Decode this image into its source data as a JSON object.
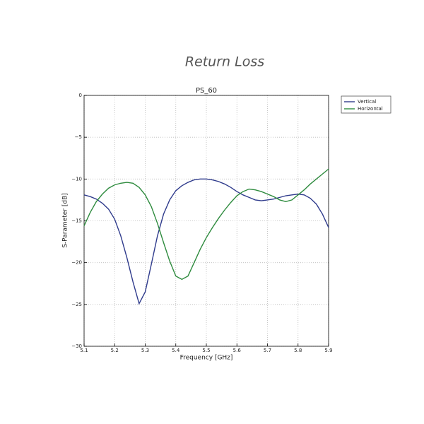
{
  "chart_data": {
    "type": "line",
    "title": "Return Loss",
    "subtitle": "PS_60",
    "x_label": "Frequency [GHz]",
    "y_label": "S-Parameter [dB]",
    "x": [
      5.1,
      5.12,
      5.14,
      5.16,
      5.18,
      5.2,
      5.22,
      5.24,
      5.26,
      5.28,
      5.3,
      5.32,
      5.34,
      5.36,
      5.38,
      5.4,
      5.42,
      5.44,
      5.46,
      5.48,
      5.5,
      5.52,
      5.54,
      5.56,
      5.58,
      5.6,
      5.62,
      5.64,
      5.66,
      5.68,
      5.7,
      5.72,
      5.74,
      5.76,
      5.78,
      5.8,
      5.82,
      5.84,
      5.86,
      5.88,
      5.9
    ],
    "series": [
      {
        "name": "Vertical",
        "color": "#2f3b8c",
        "values": [
          -11.9,
          -12.1,
          -12.4,
          -12.9,
          -13.6,
          -14.8,
          -16.8,
          -19.4,
          -22.3,
          -24.9,
          -23.5,
          -20.2,
          -16.8,
          -14.2,
          -12.5,
          -11.4,
          -10.8,
          -10.4,
          -10.1,
          -10.0,
          -10.0,
          -10.1,
          -10.3,
          -10.6,
          -11.0,
          -11.5,
          -11.9,
          -12.2,
          -12.5,
          -12.6,
          -12.5,
          -12.4,
          -12.2,
          -12.0,
          -11.9,
          -11.8,
          -11.9,
          -12.3,
          -13.0,
          -14.2,
          -15.8
        ]
      },
      {
        "name": "Horizontal",
        "color": "#2e8b3e",
        "values": [
          -15.6,
          -14.0,
          -12.7,
          -11.8,
          -11.1,
          -10.7,
          -10.5,
          -10.4,
          -10.5,
          -11.0,
          -11.9,
          -13.3,
          -15.3,
          -17.6,
          -19.8,
          -21.6,
          -22.0,
          -21.6,
          -20.0,
          -18.4,
          -17.0,
          -15.8,
          -14.7,
          -13.7,
          -12.8,
          -12.0,
          -11.5,
          -11.2,
          -11.3,
          -11.5,
          -11.8,
          -12.1,
          -12.5,
          -12.7,
          -12.5,
          -11.9,
          -11.3,
          -10.6,
          -10.0,
          -9.4,
          -8.8
        ]
      }
    ],
    "xlim": [
      5.1,
      5.9
    ],
    "xticks": [
      5.1,
      5.2,
      5.3,
      5.4,
      5.5,
      5.6,
      5.7,
      5.8,
      5.9
    ],
    "ylim": [
      -30,
      0
    ],
    "yticks": [
      {
        "value": -30,
        "label": "−30"
      },
      {
        "value": -25,
        "label": "−25"
      },
      {
        "value": -20,
        "label": "−20"
      },
      {
        "value": -15,
        "label": "−15"
      },
      {
        "value": -10,
        "label": "−10"
      },
      {
        "value": -5,
        "label": "−5"
      },
      0
    ],
    "grid": true,
    "legend": "outside-right"
  }
}
